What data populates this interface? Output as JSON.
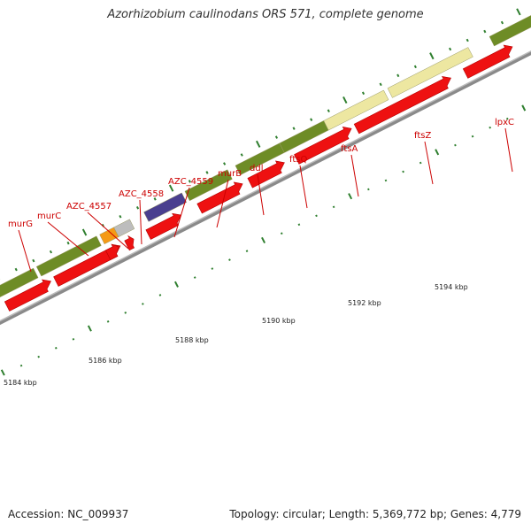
{
  "title": "Azorhizobium caulinodans ORS 571, complete genome",
  "footer": {
    "accession": "Accession: NC_009937",
    "topology": "Topology: circular; Length: 5,369,772 bp; Genes: 4,779"
  },
  "colors": {
    "backbone": "#8a8a8a",
    "cds": "#ee1111",
    "gene_olive": "#6e8c26",
    "gene_pale": "#ede7a1",
    "gene_orange": "#f59a16",
    "gene_gray": "#bdbdbd",
    "gene_purple": "#4a3f8f",
    "tick": "#2f7f2f",
    "label": "#cc0000"
  },
  "scale_labels": [
    "5184 kbp",
    "5186 kbp",
    "5188 kbp",
    "5190 kbp",
    "5192 kbp",
    "5194 kbp"
  ],
  "gene_labels": [
    "murG",
    "murC",
    "AZC_4557",
    "AZC_4558",
    "AZC_4559",
    "murB",
    "ddl",
    "ftsQ",
    "ftsA",
    "ftsZ",
    "lpxC"
  ]
}
